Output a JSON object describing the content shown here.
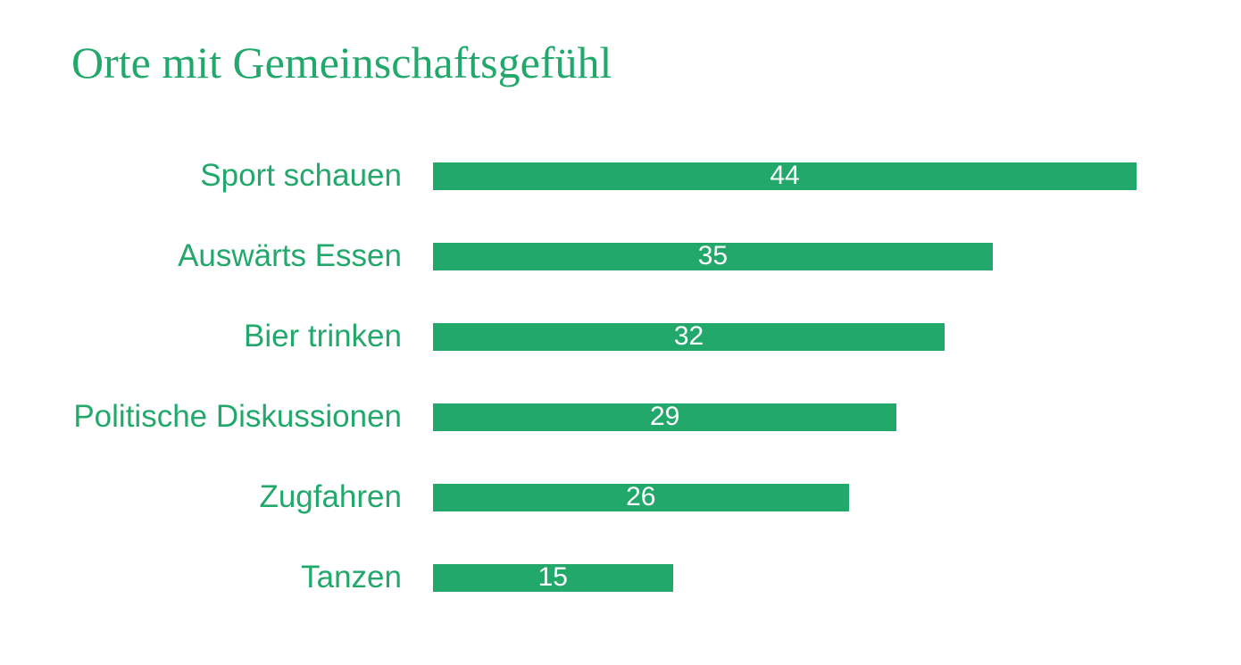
{
  "title": "Orte mit Gemeinschaftsgefühl",
  "colors": {
    "green": "#23a86c",
    "background": "#ffffff",
    "value_text": "#ffffff"
  },
  "chart_data": {
    "type": "bar",
    "orientation": "horizontal",
    "title": "Orte mit Gemeinschaftsgefühl",
    "categories": [
      "Sport schauen",
      "Auswärts Essen",
      "Bier trinken",
      "Politische Diskussionen",
      "Zugfahren",
      "Tanzen"
    ],
    "values": [
      44,
      35,
      32,
      29,
      26,
      15
    ],
    "xlim": [
      0,
      44
    ],
    "value_labels": "inside-center",
    "grid": false,
    "legend": false,
    "axes_visible": false
  }
}
